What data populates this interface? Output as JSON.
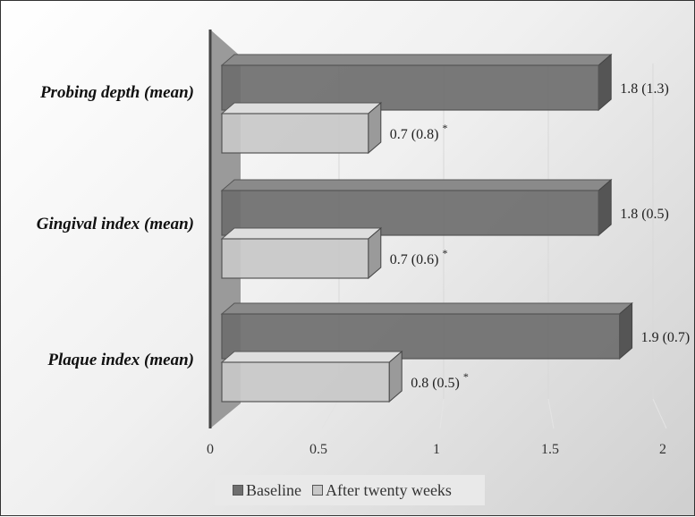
{
  "chart_data": {
    "type": "bar",
    "orientation": "horizontal",
    "style": "3d",
    "categories": [
      "Probing depth (mean)",
      "Gingival index (mean)",
      "Plaque index (mean)"
    ],
    "series": [
      {
        "name": "Baseline",
        "values": [
          1.8,
          1.8,
          1.9
        ],
        "labels": [
          "1.8 (1.3)",
          "1.8 (0.5)",
          "1.9 (0.7)"
        ],
        "color": "#6e6e6e"
      },
      {
        "name": "After twenty weeks",
        "values": [
          0.7,
          0.7,
          0.8
        ],
        "labels": [
          "0.7 (0.8)",
          "0.7 (0.6)",
          "0.8 (0.5)"
        ],
        "marks": [
          "*",
          "*",
          "*"
        ],
        "color": "#c8c8c8"
      }
    ],
    "xticks": [
      "0",
      "0.5",
      "1",
      "1.5",
      "2"
    ],
    "xlim": [
      0,
      2
    ],
    "grid": true,
    "legend": "bottom"
  }
}
